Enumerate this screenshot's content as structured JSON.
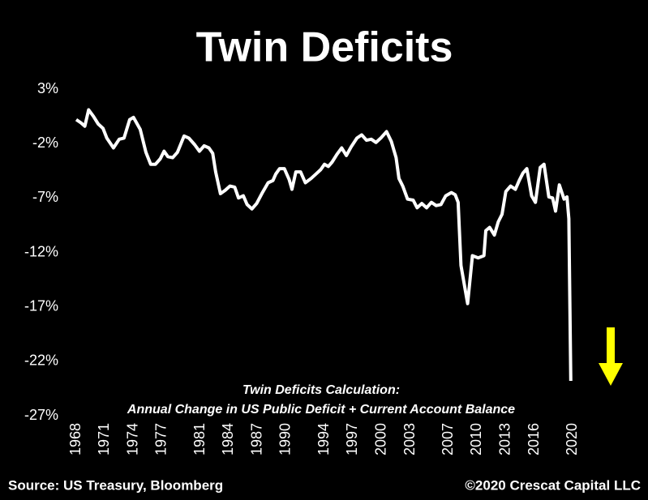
{
  "chart_data": {
    "type": "line",
    "title": "Twin Deficits",
    "annotation": [
      "Twin Deficits Calculation:",
      "Annual Change in US Public Deficit + Current Account Balance"
    ],
    "source": "Source: US Treasury, Bloomberg",
    "copyright": "©2020 Crescat Capital LLC",
    "xlim": [
      1968,
      2025
    ],
    "xticks": [
      1968,
      1971,
      1974,
      1977,
      1981,
      1984,
      1987,
      1990,
      1994,
      1997,
      2000,
      2003,
      2007,
      2010,
      2013,
      2016,
      2020
    ],
    "ylim": [
      -27,
      3
    ],
    "yticks": [
      {
        "value": 3,
        "label": "3%"
      },
      {
        "value": -2,
        "label": "-2%"
      },
      {
        "value": -7,
        "label": "-7%"
      },
      {
        "value": -12,
        "label": "-12%"
      },
      {
        "value": -17,
        "label": "-17%"
      },
      {
        "value": -22,
        "label": "-22%"
      },
      {
        "value": -27,
        "label": "-27%"
      }
    ],
    "grid": false,
    "series": [
      {
        "name": "Twin Deficits",
        "color": "#ffffff",
        "x": [
          1968.0,
          1968.5,
          1968.9,
          1969.3,
          1969.8,
          1970.3,
          1970.8,
          1971.2,
          1971.9,
          1972.5,
          1973.0,
          1973.6,
          1974.0,
          1974.7,
          1975.3,
          1975.8,
          1976.3,
          1976.8,
          1977.2,
          1977.6,
          1978.1,
          1978.6,
          1979.3,
          1979.8,
          1980.4,
          1980.9,
          1981.4,
          1981.9,
          1982.3,
          1982.6,
          1983.1,
          1983.6,
          1984.1,
          1984.6,
          1985.0,
          1985.5,
          1985.9,
          1986.4,
          1986.9,
          1987.5,
          1988.1,
          1988.6,
          1988.9,
          1989.3,
          1989.8,
          1990.3,
          1990.6,
          1991.0,
          1991.5,
          1992.0,
          1992.6,
          1993.1,
          1993.6,
          1994.0,
          1994.4,
          1994.8,
          1995.3,
          1995.8,
          1996.3,
          1996.8,
          1997.4,
          1997.9,
          1998.4,
          1998.9,
          1999.4,
          1999.9,
          2000.5,
          2001.0,
          2001.5,
          2001.8,
          2002.2,
          2002.7,
          2003.3,
          2003.7,
          2004.2,
          2004.7,
          2005.2,
          2005.7,
          2006.2,
          2006.7,
          2007.3,
          2007.7,
          2008.0,
          2008.3,
          2009.0,
          2009.5,
          2010.1,
          2010.7,
          2010.9,
          2011.3,
          2011.8,
          2012.2,
          2012.6,
          2013.0,
          2013.5,
          2014.0,
          2014.4,
          2014.8,
          2015.2,
          2015.7,
          2016.1,
          2016.6,
          2017.0,
          2017.5,
          2017.9,
          2018.2,
          2018.6,
          2019.1,
          2019.4,
          2019.6,
          2019.8
        ],
        "values": [
          0.2,
          -0.1,
          -0.4,
          1.1,
          0.5,
          -0.2,
          -0.6,
          -1.5,
          -2.4,
          -1.6,
          -1.5,
          0.2,
          0.4,
          -0.7,
          -2.8,
          -3.9,
          -3.9,
          -3.4,
          -2.7,
          -3.2,
          -3.3,
          -2.8,
          -1.3,
          -1.5,
          -2.1,
          -2.7,
          -2.2,
          -2.4,
          -2.9,
          -4.6,
          -6.6,
          -6.3,
          -5.9,
          -6.0,
          -7.0,
          -6.8,
          -7.6,
          -8.0,
          -7.5,
          -6.5,
          -5.6,
          -5.4,
          -4.8,
          -4.3,
          -4.3,
          -5.3,
          -6.2,
          -4.6,
          -4.6,
          -5.6,
          -5.2,
          -4.8,
          -4.4,
          -3.9,
          -4.1,
          -3.7,
          -3.0,
          -2.4,
          -3.1,
          -2.3,
          -1.5,
          -1.2,
          -1.7,
          -1.6,
          -1.9,
          -1.5,
          -0.9,
          -1.8,
          -3.3,
          -5.2,
          -5.9,
          -7.1,
          -7.2,
          -7.9,
          -7.5,
          -7.9,
          -7.4,
          -7.7,
          -7.6,
          -6.8,
          -6.5,
          -6.7,
          -7.4,
          -13.2,
          -16.7,
          -12.3,
          -12.5,
          -12.3,
          -10.0,
          -9.7,
          -10.4,
          -9.2,
          -8.5,
          -6.4,
          -5.9,
          -6.2,
          -5.4,
          -4.7,
          -4.3,
          -6.8,
          -7.4,
          -4.2,
          -3.9,
          -6.9,
          -7.0,
          -8.2,
          -5.8,
          -7.1,
          -6.9,
          -8.9,
          -23.8
        ]
      }
    ]
  }
}
